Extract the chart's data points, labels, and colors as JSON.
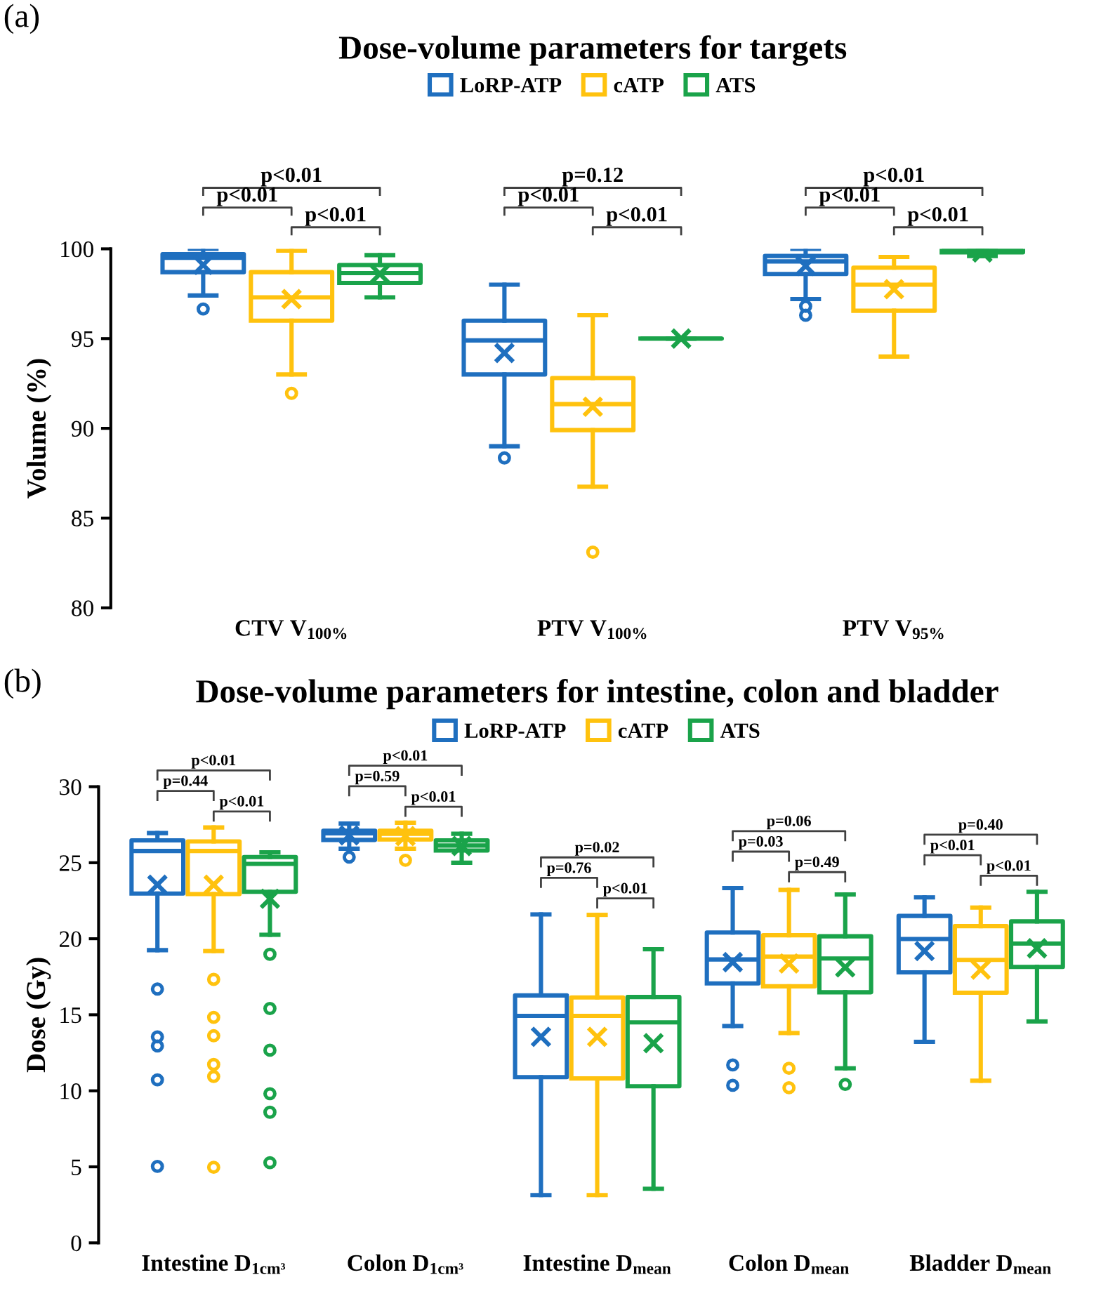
{
  "chart_data": [
    {
      "type": "box",
      "title": "Dose-volume parameters for targets",
      "ylabel": "Volume (%)",
      "legend": "top",
      "categories": [
        "CTV V$_{100%}$",
        "PTV V$_{100%}$",
        "PTV V$_{95%}$"
      ],
      "ylim": [
        80,
        100
      ],
      "yticks": [
        80,
        85,
        90,
        95,
        100
      ],
      "annotations": [
        "(a)",
        "p<0.01",
        "p<0.01",
        "p<0.01",
        "p=0.12",
        "p<0.01",
        "p<0.01",
        "p<0.01",
        "p<0.01",
        "p<0.01"
      ],
      "series": [
        {
          "name": "LoRP-ATP",
          "color": "#1f6fbf",
          "boxes": [
            {
              "low": 97.4,
              "q1": 98.7,
              "median": 99.5,
              "q3": 99.7,
              "high": 100,
              "mean": 99.1,
              "outliers": [
                96.65
              ]
            },
            {
              "low": 89.0,
              "q1": 93.0,
              "median": 94.9,
              "q3": 96.0,
              "high": 98.0,
              "mean": 94.2,
              "outliers": [
                88.35
              ]
            },
            {
              "low": 97.2,
              "q1": 98.6,
              "median": 99.3,
              "q3": 99.6,
              "high": 100,
              "mean": 99.05,
              "outliers": [
                96.8,
                96.3
              ]
            }
          ]
        },
        {
          "name": "cATP",
          "color": "#ffc20e",
          "boxes": [
            {
              "low": 93.0,
              "q1": 96.0,
              "median": 97.3,
              "q3": 98.7,
              "high": 99.9,
              "mean": 97.2,
              "outliers": [
                91.95
              ]
            },
            {
              "low": 86.75,
              "q1": 89.9,
              "median": 91.35,
              "q3": 92.8,
              "high": 96.3,
              "mean": 91.2,
              "outliers": [
                83.1
              ]
            },
            {
              "low": 94.0,
              "q1": 96.55,
              "median": 98.0,
              "q3": 98.95,
              "high": 99.55,
              "mean": 97.75
            }
          ]
        },
        {
          "name": "ATS",
          "color": "#1aa34a",
          "boxes": [
            {
              "low": 97.3,
              "q1": 98.1,
              "median": 98.65,
              "q3": 99.1,
              "high": 99.65,
              "mean": 98.6
            },
            {
              "low": 95.0,
              "q1": 95.0,
              "median": 95.0,
              "q3": 95.0,
              "high": 95.0,
              "mean": 95.0
            },
            {
              "low": 99.6,
              "q1": 99.8,
              "median": 100,
              "q3": 100,
              "high": 100,
              "mean": 99.8
            }
          ]
        }
      ]
    },
    {
      "type": "box",
      "title": "Dose-volume parameters for intestine, colon and bladder",
      "ylabel": "Dose (Gy)",
      "legend": "top",
      "categories": [
        "Intestine D$_{1cm³}$",
        "Colon D$_{1cm³}$",
        "Intestine D$_{mean}$",
        "Colon D$_{mean}$",
        "Bladder D$_{mean}$"
      ],
      "ylim": [
        0,
        30
      ],
      "yticks": [
        0,
        5,
        10,
        15,
        20,
        25,
        30
      ],
      "annotations": [
        "(b)",
        "p<0.01",
        "p=0.44",
        "p<0.01",
        "p<0.01",
        "p=0.59",
        "p<0.01",
        "p=0.02",
        "p=0.76",
        "p<0.01",
        "p=0.06",
        "p=0.03",
        "p=0.49",
        "p=0.40",
        "p<0.01",
        "p<0.01"
      ],
      "series": [
        {
          "name": "LoRP-ATP",
          "color": "#1f6fbf",
          "boxes": [
            {
              "low": 19.25,
              "q1": 22.97,
              "median": 25.77,
              "q3": 26.47,
              "high": 26.95,
              "mean": 23.55,
              "outliers": [
                16.69,
                13.55,
                12.95,
                10.72,
                5.03
              ]
            },
            {
              "low": 25.92,
              "q1": 26.5,
              "median": 26.93,
              "q3": 27.1,
              "high": 27.57,
              "mean": 26.8,
              "outliers": [
                25.37
              ]
            },
            {
              "low": 3.14,
              "q1": 10.9,
              "median": 14.93,
              "q3": 16.27,
              "high": 21.6,
              "mean": 13.55
            },
            {
              "low": 14.26,
              "q1": 17.06,
              "median": 18.64,
              "q3": 20.41,
              "high": 23.33,
              "mean": 18.46,
              "outliers": [
                11.7,
                10.36
              ]
            },
            {
              "low": 13.22,
              "q1": 17.79,
              "median": 19.98,
              "q3": 21.5,
              "high": 22.72,
              "mean": 19.19
            }
          ]
        },
        {
          "name": "cATP",
          "color": "#ffc20e",
          "boxes": [
            {
              "low": 19.19,
              "q1": 22.94,
              "median": 25.77,
              "q3": 26.4,
              "high": 27.32,
              "mean": 23.55,
              "outliers": [
                17.33,
                14.83,
                13.62,
                11.73,
                10.94,
                4.97
              ]
            },
            {
              "low": 25.92,
              "q1": 26.53,
              "median": 26.9,
              "q3": 27.1,
              "high": 27.63,
              "mean": 26.75,
              "outliers": [
                25.16
              ]
            },
            {
              "low": 3.14,
              "q1": 10.81,
              "median": 14.93,
              "q3": 16.14,
              "high": 21.57,
              "mean": 13.55
            },
            {
              "low": 13.8,
              "q1": 16.87,
              "median": 18.82,
              "q3": 20.23,
              "high": 23.21,
              "mean": 18.37,
              "outliers": [
                11.48,
                10.2
              ]
            },
            {
              "low": 10.66,
              "q1": 16.45,
              "median": 18.61,
              "q3": 20.83,
              "high": 22.05,
              "mean": 17.97
            }
          ]
        },
        {
          "name": "ATS",
          "color": "#1aa34a",
          "boxes": [
            {
              "low": 20.26,
              "q1": 23.09,
              "median": 24.92,
              "q3": 25.37,
              "high": 25.68,
              "mean": 22.63,
              "outliers": [
                18.98,
                15.41,
                12.67,
                9.81,
                8.59,
                5.27
              ]
            },
            {
              "low": 25.0,
              "q1": 25.8,
              "median": 26.13,
              "q3": 26.47,
              "high": 26.9,
              "mean": 26.1
            },
            {
              "low": 3.56,
              "q1": 10.3,
              "median": 14.5,
              "q3": 16.17,
              "high": 19.31,
              "mean": 13.13
            },
            {
              "low": 11.48,
              "q1": 16.48,
              "median": 18.7,
              "q3": 20.16,
              "high": 22.91,
              "mean": 18.12,
              "outliers": [
                10.42
              ]
            },
            {
              "low": 14.56,
              "q1": 18.15,
              "median": 19.68,
              "q3": 21.14,
              "high": 23.09,
              "mean": 19.37
            }
          ]
        }
      ]
    }
  ]
}
